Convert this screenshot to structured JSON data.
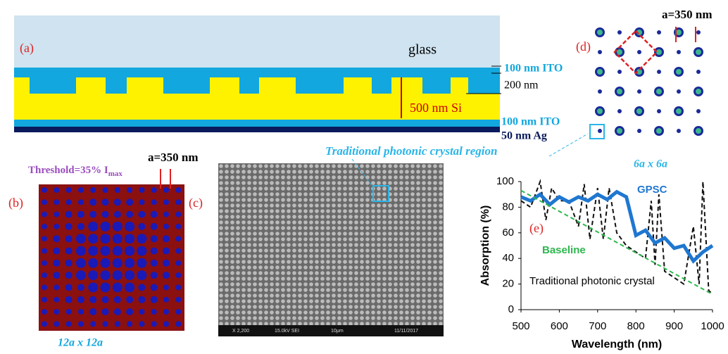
{
  "panel_a": {
    "label": "(a)",
    "glass": "glass",
    "ito_top": "100 nm ITO",
    "depth": "200 nm",
    "si": "500 nm Si",
    "ito_bottom": "100 nm ITO",
    "ag": "50 nm Ag"
  },
  "panel_b": {
    "label": "(b)",
    "threshold": "Threshold=35% I",
    "threshold_sub": "max",
    "lattice": "a=350 nm",
    "size": "12a x 12a"
  },
  "panel_c": {
    "label": "(c)",
    "region": "Traditional photonic crystal region",
    "sem_info": [
      "X 2,200",
      "15.0kV SEI",
      "10μm",
      "11/11/2017"
    ]
  },
  "panel_d": {
    "label": "(d)",
    "lattice": "a=350 nm",
    "size": "6a x 6a"
  },
  "chart_data": {
    "type": "line",
    "label": "(e)",
    "x_label": "Wavelength (nm)",
    "y_label": "Absorption (%)",
    "xlim": [
      500,
      1000
    ],
    "xticks": [
      500,
      600,
      700,
      800,
      900,
      1000
    ],
    "ylim": [
      0,
      100
    ],
    "yticks": [
      0,
      20,
      40,
      60,
      80,
      100
    ],
    "series": [
      {
        "name": "Traditional photonic crystal",
        "color": "#111111",
        "dashed": true,
        "x": [
          500,
          525,
          550,
          565,
          580,
          600,
          625,
          650,
          665,
          680,
          700,
          715,
          730,
          750,
          775,
          800,
          825,
          840,
          850,
          860,
          875,
          900,
          925,
          950,
          965,
          975,
          990,
          1000
        ],
        "values": [
          85,
          80,
          100,
          70,
          95,
          85,
          85,
          65,
          98,
          55,
          95,
          55,
          95,
          60,
          50,
          45,
          40,
          85,
          35,
          90,
          30,
          25,
          20,
          65,
          20,
          100,
          15,
          12
        ]
      },
      {
        "name": "GPSC",
        "color": "#1f77d0",
        "dashed": false,
        "x": [
          500,
          525,
          550,
          575,
          600,
          625,
          650,
          675,
          700,
          725,
          750,
          775,
          790,
          800,
          825,
          850,
          875,
          900,
          925,
          950,
          975,
          1000
        ],
        "values": [
          88,
          85,
          90,
          82,
          88,
          84,
          88,
          85,
          90,
          86,
          92,
          88,
          70,
          58,
          62,
          52,
          56,
          48,
          50,
          38,
          45,
          50
        ]
      },
      {
        "name": "Baseline",
        "color": "#2db84d",
        "dashed": true,
        "x": [
          500,
          1000
        ],
        "values": [
          93,
          12
        ]
      }
    ]
  }
}
